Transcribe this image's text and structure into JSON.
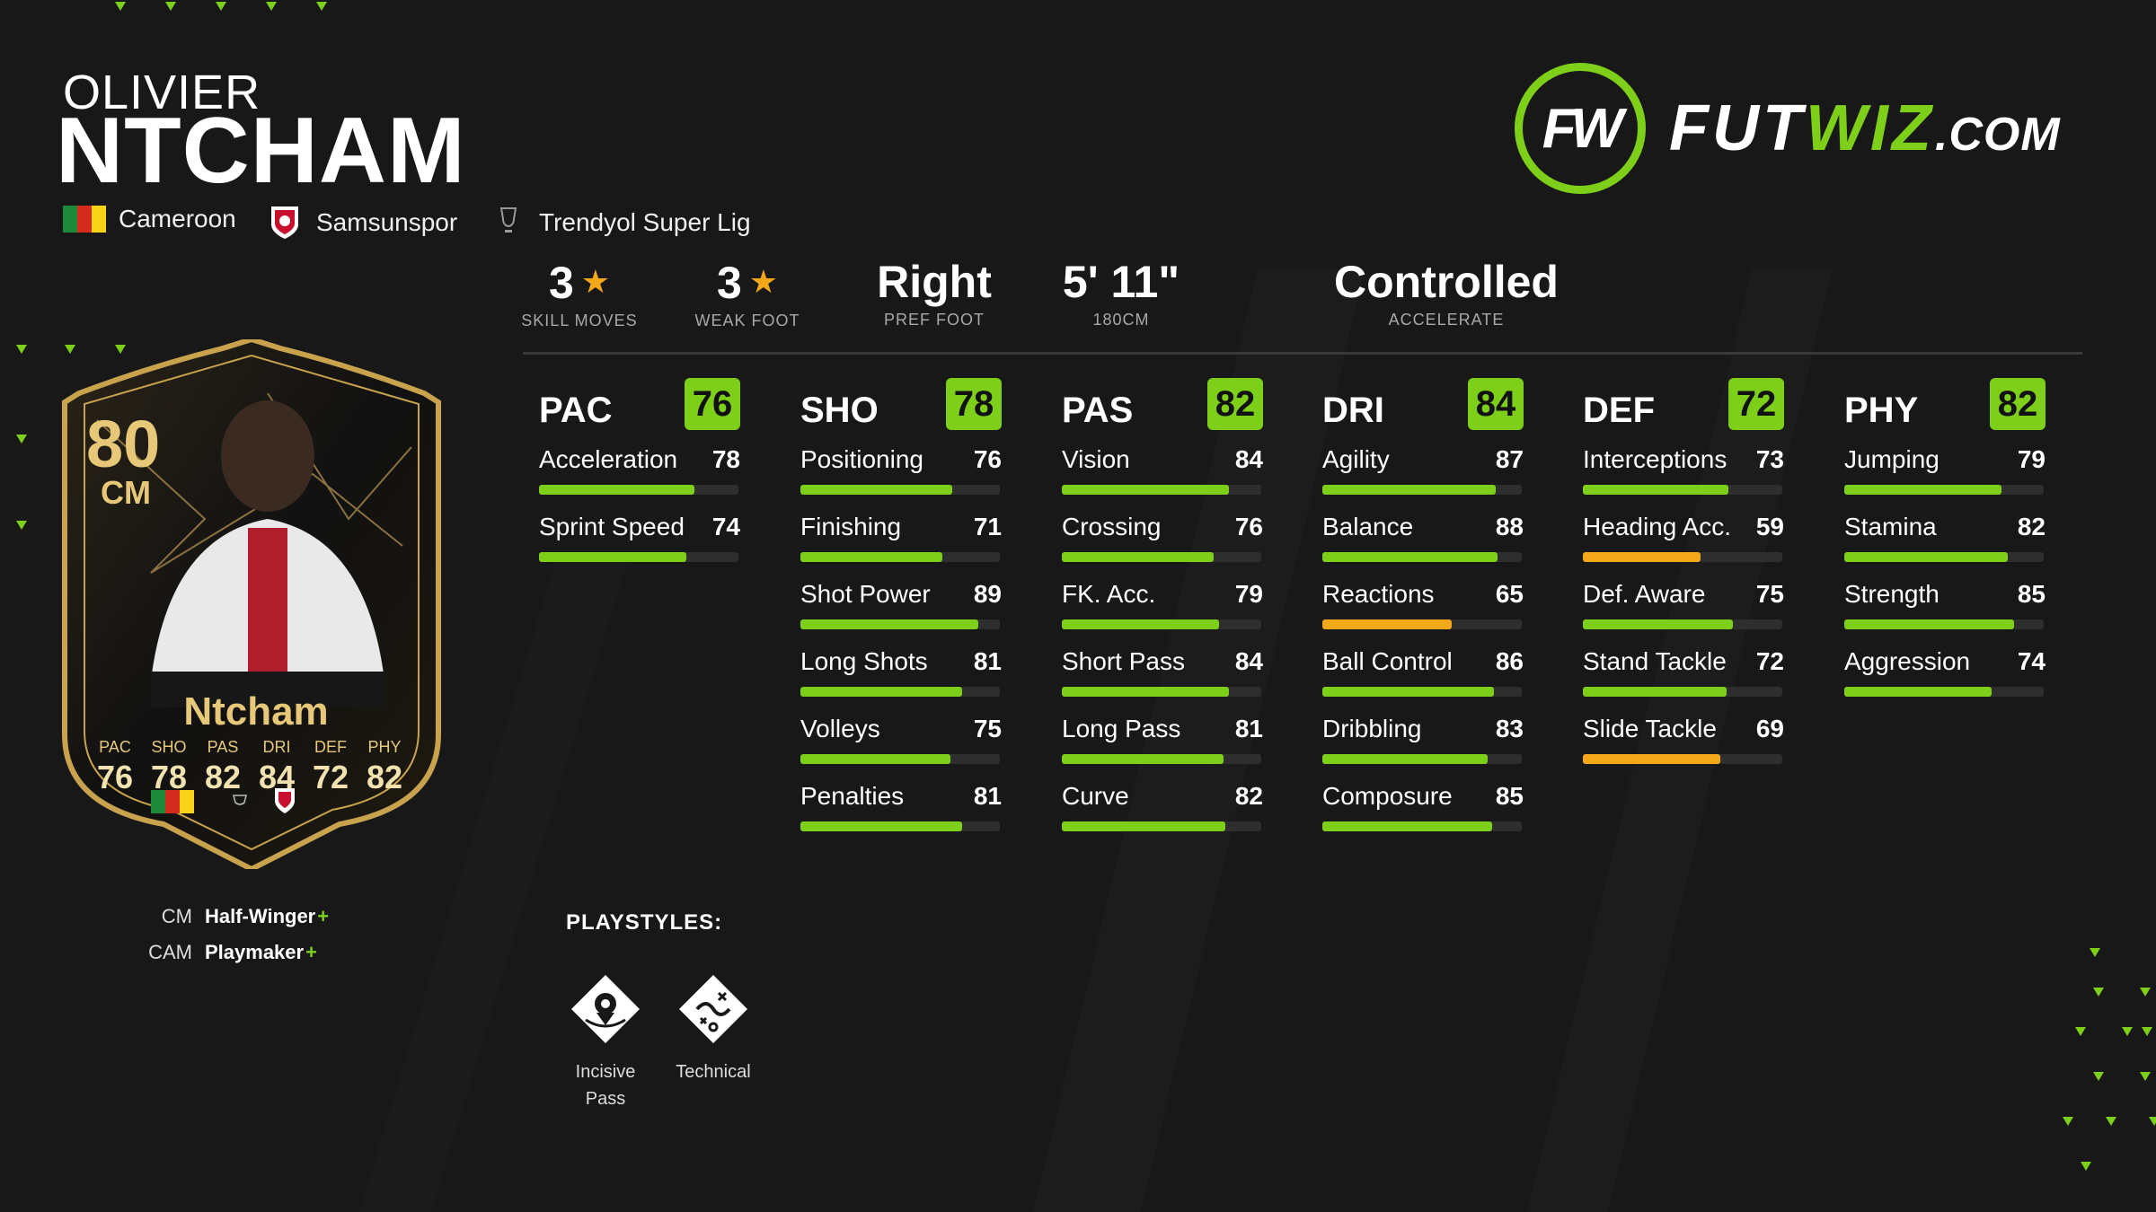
{
  "player": {
    "first_name": "OLIVIER",
    "last_name": "NTCHAM",
    "nation": "Cameroon",
    "club": "Samsunspor",
    "league": "Trendyol Super Lig"
  },
  "logo": {
    "mark": "FW",
    "text_a": "FUT",
    "text_b": "WIZ",
    "text_c": ".COM"
  },
  "info": [
    {
      "value": "3",
      "label": "SKILL MOVES",
      "star": true
    },
    {
      "value": "3",
      "label": "WEAK FOOT",
      "star": true
    },
    {
      "value": "Right",
      "label": "PREF FOOT",
      "star": false
    },
    {
      "value": "5' 11\"",
      "label": "180CM",
      "star": false
    },
    {
      "value": "Controlled",
      "label": "ACCELERATE",
      "star": false
    }
  ],
  "stats": [
    {
      "name": "PAC",
      "rating": "76",
      "rows": [
        {
          "label": "Acceleration",
          "value": 78
        },
        {
          "label": "Sprint Speed",
          "value": 74
        }
      ]
    },
    {
      "name": "SHO",
      "rating": "78",
      "rows": [
        {
          "label": "Positioning",
          "value": 76
        },
        {
          "label": "Finishing",
          "value": 71
        },
        {
          "label": "Shot Power",
          "value": 89
        },
        {
          "label": "Long Shots",
          "value": 81
        },
        {
          "label": "Volleys",
          "value": 75
        },
        {
          "label": "Penalties",
          "value": 81
        }
      ]
    },
    {
      "name": "PAS",
      "rating": "82",
      "rows": [
        {
          "label": "Vision",
          "value": 84
        },
        {
          "label": "Crossing",
          "value": 76
        },
        {
          "label": "FK. Acc.",
          "value": 79
        },
        {
          "label": "Short Pass",
          "value": 84
        },
        {
          "label": "Long Pass",
          "value": 81
        },
        {
          "label": "Curve",
          "value": 82
        }
      ]
    },
    {
      "name": "DRI",
      "rating": "84",
      "rows": [
        {
          "label": "Agility",
          "value": 87
        },
        {
          "label": "Balance",
          "value": 88
        },
        {
          "label": "Reactions",
          "value": 65
        },
        {
          "label": "Ball Control",
          "value": 86
        },
        {
          "label": "Dribbling",
          "value": 83
        },
        {
          "label": "Composure",
          "value": 85
        }
      ]
    },
    {
      "name": "DEF",
      "rating": "72",
      "rows": [
        {
          "label": "Interceptions",
          "value": 73
        },
        {
          "label": "Heading Acc.",
          "value": 59
        },
        {
          "label": "Def. Aware",
          "value": 75
        },
        {
          "label": "Stand Tackle",
          "value": 72
        },
        {
          "label": "Slide Tackle",
          "value": 69
        }
      ]
    },
    {
      "name": "PHY",
      "rating": "82",
      "rows": [
        {
          "label": "Jumping",
          "value": 79
        },
        {
          "label": "Stamina",
          "value": 82
        },
        {
          "label": "Strength",
          "value": 85
        },
        {
          "label": "Aggression",
          "value": 74
        }
      ]
    }
  ],
  "card": {
    "rating": "80",
    "position": "CM",
    "name": "Ntcham",
    "stats": [
      {
        "k": "PAC",
        "v": "76"
      },
      {
        "k": "SHO",
        "v": "78"
      },
      {
        "k": "PAS",
        "v": "82"
      },
      {
        "k": "DRI",
        "v": "84"
      },
      {
        "k": "DEF",
        "v": "72"
      },
      {
        "k": "PHY",
        "v": "82"
      }
    ]
  },
  "roles": [
    {
      "pos": "CM",
      "role": "Half-Winger",
      "plus": "+"
    },
    {
      "pos": "CAM",
      "role": "Playmaker",
      "plus": "+"
    }
  ],
  "playstyles": {
    "title": "PLAYSTYLES:",
    "items": [
      {
        "label_1": "Incisive",
        "label_2": "Pass",
        "icon": "incisive-pass-icon"
      },
      {
        "label_1": "Technical",
        "label_2": "",
        "icon": "technical-icon"
      }
    ]
  },
  "colors": {
    "accent": "#7dcf1a",
    "mid": "#f3a81a",
    "background": "#181818",
    "card_gold": "#e7c878"
  }
}
